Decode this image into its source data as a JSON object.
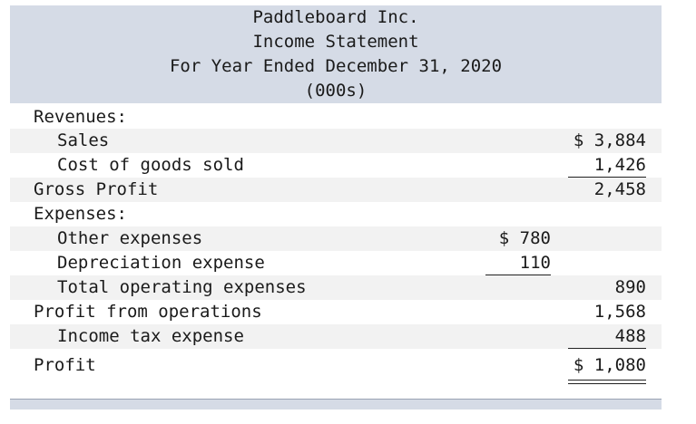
{
  "header": {
    "company": "Paddleboard Inc.",
    "statement": "Income Statement",
    "period": "For Year Ended December 31, 2020",
    "units": "(000s)"
  },
  "rows": {
    "revenues": {
      "label": "Revenues:"
    },
    "sales": {
      "label": "Sales",
      "c2": "$ 3,884"
    },
    "cogs": {
      "label": "Cost of goods sold",
      "c2": "1,426"
    },
    "gross_profit": {
      "label": "Gross Profit",
      "c2": "2,458"
    },
    "expenses": {
      "label": "Expenses:"
    },
    "other_expenses": {
      "label": "Other expenses",
      "c1": "$ 780"
    },
    "depreciation": {
      "label": "Depreciation expense",
      "c1": "110"
    },
    "total_operating": {
      "label": "Total operating expenses",
      "c2": "890"
    },
    "profit_operations": {
      "label": "Profit from operations",
      "c2": "1,568"
    },
    "income_tax": {
      "label": "Income tax expense",
      "c2": "488"
    },
    "profit": {
      "label": "Profit",
      "c2": "$ 1,080"
    }
  }
}
